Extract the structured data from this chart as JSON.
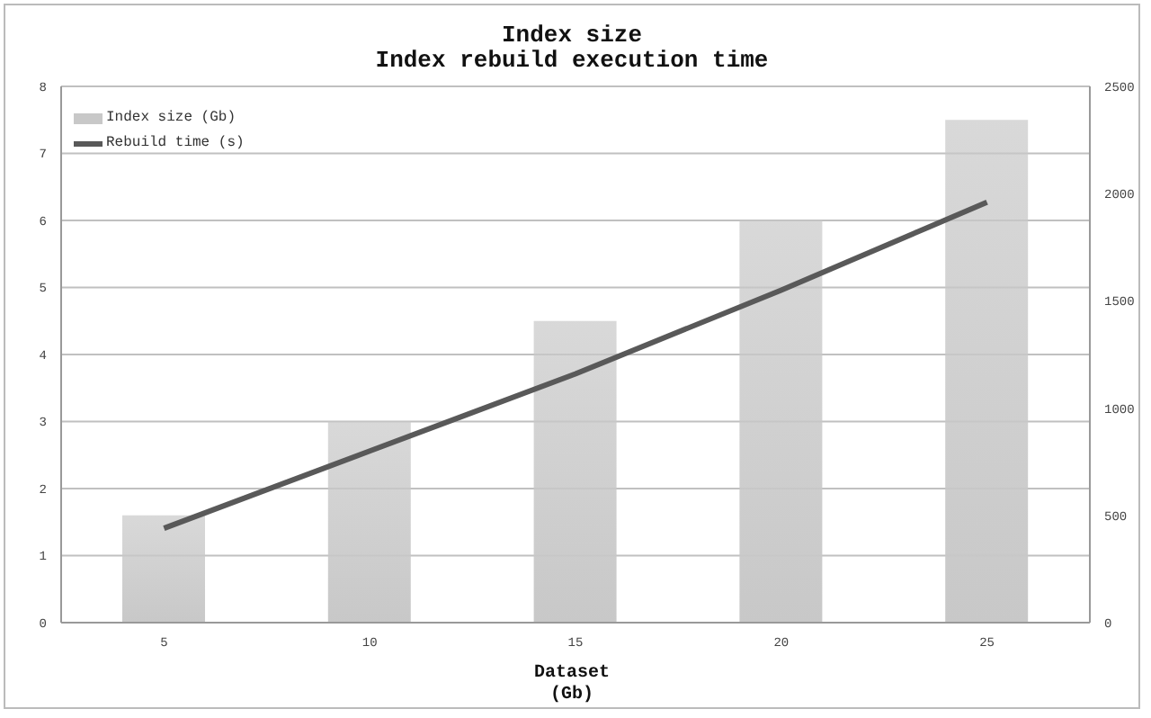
{
  "chart_data": {
    "type": "bar",
    "title": "Index size\nIndex rebuild execution time",
    "xlabel": "Dataset\n(Gb)",
    "categories": [
      "5",
      "10",
      "15",
      "20",
      "25"
    ],
    "series": [
      {
        "name": "Index size (Gb)",
        "color": "#c8c8c8",
        "values": [
          1.6,
          3,
          4.5,
          6,
          7.5
        ]
      },
      {
        "name": "Rebuild time (s)",
        "type": "line",
        "axis": "y2",
        "color": "#595959",
        "values": [
          440,
          800,
          1160,
          1550,
          1960
        ]
      }
    ],
    "ylim": [
      0,
      8
    ],
    "yticks": [
      0,
      1,
      2,
      3,
      4,
      5,
      6,
      7,
      8
    ],
    "y2lim": [
      0,
      2500
    ],
    "y2ticks": [
      0,
      500,
      1000,
      1500,
      2000,
      2500
    ],
    "grid": "y",
    "legend": "top left",
    "marker": "none",
    "line_style": "solid"
  }
}
